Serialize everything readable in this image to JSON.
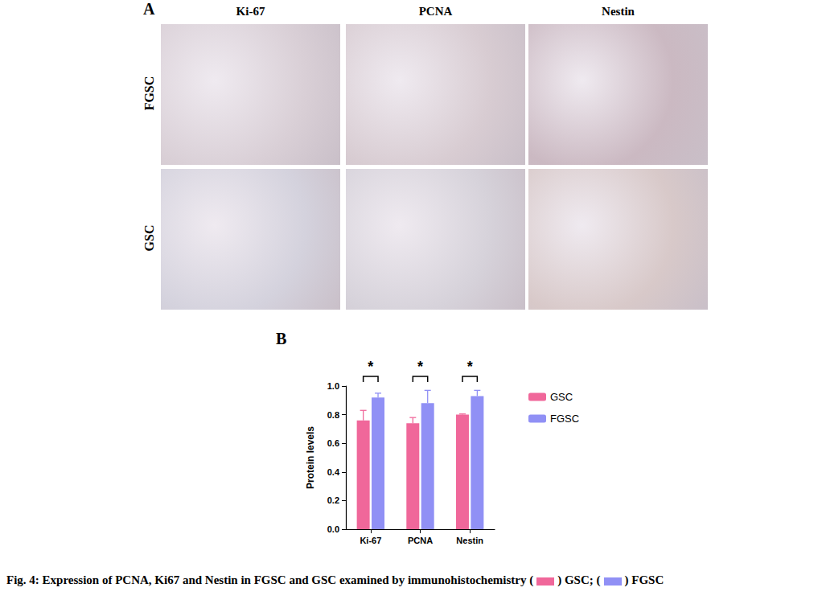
{
  "panel_a": {
    "label": "A",
    "columns": [
      "Ki-67",
      "PCNA",
      "Nestin"
    ],
    "rows": [
      "FGSC",
      "GSC"
    ]
  },
  "panel_b": {
    "label": "B"
  },
  "chart_data": {
    "type": "bar",
    "y_label": "Protein levels",
    "categories": [
      "Ki-67",
      "PCNA",
      "Nestin"
    ],
    "series": [
      {
        "name": "GSC",
        "color": "#f0679a",
        "values": [
          0.76,
          0.74,
          0.8
        ],
        "errors": [
          0.07,
          0.04,
          0.005
        ]
      },
      {
        "name": "FGSC",
        "color": "#9090f5",
        "values": [
          0.92,
          0.88,
          0.93
        ],
        "errors": [
          0.03,
          0.09,
          0.04
        ]
      }
    ],
    "ylim": [
      0,
      1.0
    ],
    "yticks": [
      {
        "value": 0,
        "label": "0.0"
      },
      0.2,
      0.4,
      0.6,
      0.8,
      {
        "value": 1.0,
        "label": "1.0"
      }
    ],
    "annotations": [
      {
        "category": "Ki-67",
        "text": "*"
      },
      {
        "category": "PCNA",
        "text": "*"
      },
      {
        "category": "Nestin",
        "text": "*"
      }
    ],
    "legend": "right",
    "grid": false
  },
  "caption": {
    "text": "Fig. 4: Expression of PCNA, Ki67 and Nestin in FGSC and GSC examined by immunohistochemistry",
    "legend_parts": [
      " (",
      ") GSC; (",
      ") FGSC"
    ]
  }
}
